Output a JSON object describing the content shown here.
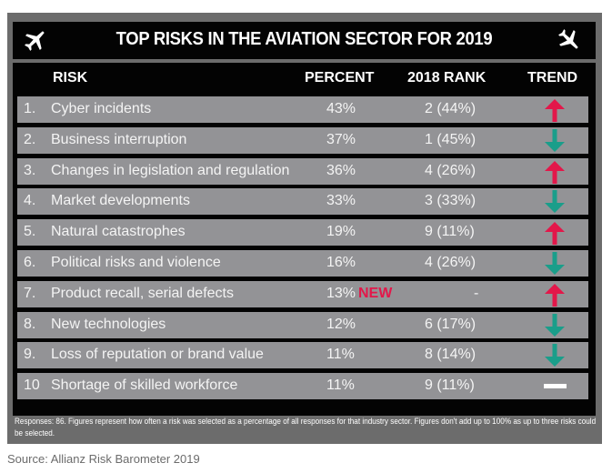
{
  "title": "TOP RISKS IN THE AVIATION SECTOR FOR 2019",
  "icons": {
    "left": "airplane-icon",
    "right": "airplane-icon"
  },
  "columns": {
    "risk": "RISK",
    "percent": "PERCENT",
    "rank_2018": "2018 RANK",
    "trend": "TREND"
  },
  "colors": {
    "up": "#e3174a",
    "down": "#1a9e8a",
    "flat": "#ffffff",
    "new_badge": "#e3174a",
    "row_bg": "#939396"
  },
  "rows": [
    {
      "num": "1.",
      "name": "Cyber incidents",
      "percent": "43%",
      "new": "",
      "rank_2018": "2 (44%)",
      "trend": "up"
    },
    {
      "num": "2.",
      "name": "Business interruption",
      "percent": "37%",
      "new": "",
      "rank_2018": "1 (45%)",
      "trend": "down"
    },
    {
      "num": "3.",
      "name": "Changes in legislation and regulation",
      "percent": "36%",
      "new": "",
      "rank_2018": "4 (26%)",
      "trend": "up"
    },
    {
      "num": "4.",
      "name": "Market developments",
      "percent": "33%",
      "new": "",
      "rank_2018": "3 (33%)",
      "trend": "down"
    },
    {
      "num": "5.",
      "name": "Natural catastrophes",
      "percent": "19%",
      "new": "",
      "rank_2018": "9 (11%)",
      "trend": "up"
    },
    {
      "num": "6.",
      "name": "Political risks and violence",
      "percent": "16%",
      "new": "",
      "rank_2018": "4 (26%)",
      "trend": "down"
    },
    {
      "num": "7.",
      "name": "Product recall, serial defects",
      "percent": "13%",
      "new": "NEW",
      "rank_2018": "-",
      "trend": "up"
    },
    {
      "num": "8.",
      "name": "New technologies",
      "percent": "12%",
      "new": "",
      "rank_2018": "6 (17%)",
      "trend": "down"
    },
    {
      "num": "9.",
      "name": "Loss of reputation or brand value",
      "percent": "11%",
      "new": "",
      "rank_2018": "8 (14%)",
      "trend": "down"
    },
    {
      "num": "10",
      "name": "Shortage of skilled workforce",
      "percent": "11%",
      "new": "",
      "rank_2018": "9 (11%)",
      "trend": "flat"
    }
  ],
  "footnote": "Responses: 86. Figures represent how often a risk was selected as a percentage of all responses for that industry sector. Figures don't add up to 100% as up to three risks could be selected.",
  "source": "Source: Allianz Risk Barometer 2019"
}
